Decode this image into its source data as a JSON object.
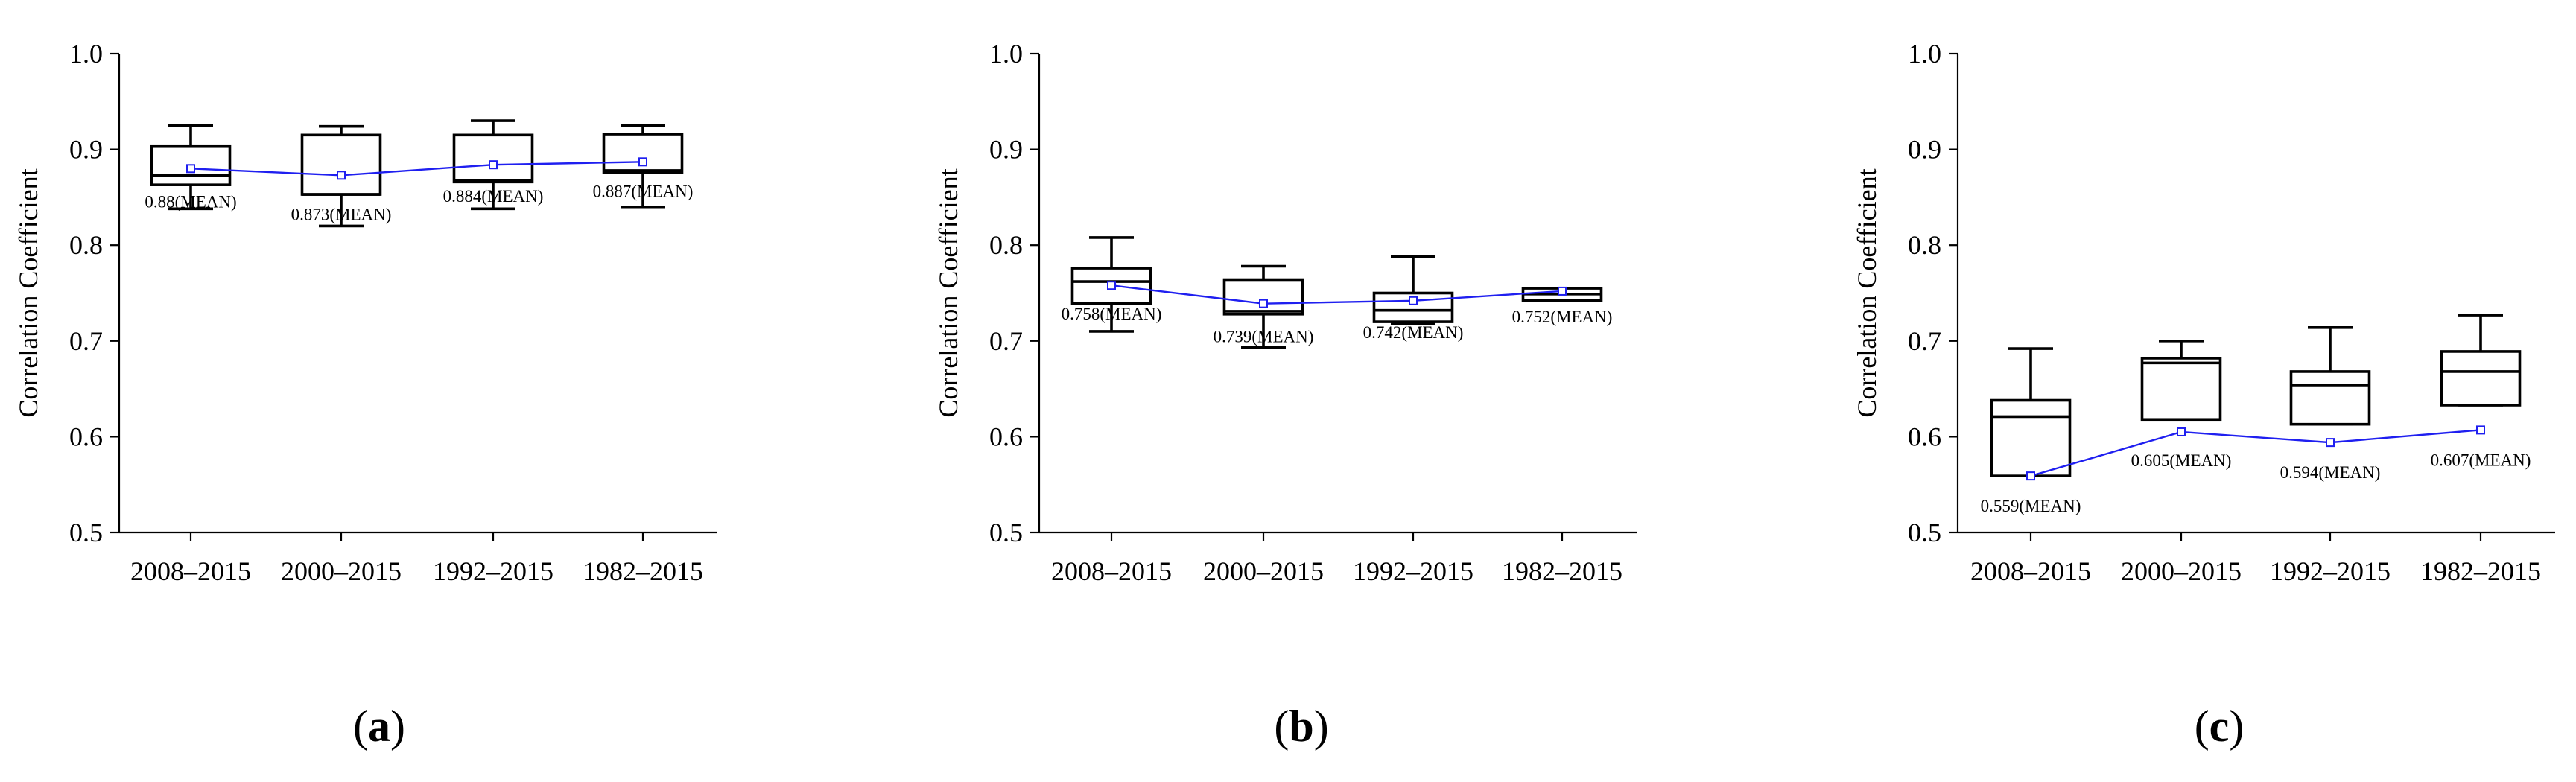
{
  "chart_data": [
    {
      "type": "box",
      "panel_label": "a",
      "ylabel": "Correlation Coefficient",
      "ylim": [
        0.5,
        1.0
      ],
      "yticks": [
        "0.5",
        "0.6",
        "0.7",
        "0.8",
        "0.9",
        "1.0"
      ],
      "categories": [
        "2008–2015",
        "2000–2015",
        "1992–2015",
        "1982–2015"
      ],
      "boxes": [
        {
          "whisker_low": 0.838,
          "q1": 0.863,
          "median": 0.873,
          "q3": 0.903,
          "whisker_high": 0.925,
          "mean": 0.88,
          "mean_label": "0.88(MEAN)"
        },
        {
          "whisker_low": 0.82,
          "q1": 0.853,
          "median": 0.853,
          "q3": 0.915,
          "whisker_high": 0.924,
          "mean": 0.873,
          "mean_label": "0.873(MEAN)"
        },
        {
          "whisker_low": 0.838,
          "q1": 0.866,
          "median": 0.868,
          "q3": 0.915,
          "whisker_high": 0.93,
          "mean": 0.884,
          "mean_label": "0.884(MEAN)"
        },
        {
          "whisker_low": 0.84,
          "q1": 0.876,
          "median": 0.878,
          "q3": 0.916,
          "whisker_high": 0.925,
          "mean": 0.887,
          "mean_label": "0.887(MEAN)"
        }
      ]
    },
    {
      "type": "box",
      "panel_label": "b",
      "ylabel": "Correlation Coefficient",
      "ylim": [
        0.5,
        1.0
      ],
      "yticks": [
        "0.5",
        "0.6",
        "0.7",
        "0.8",
        "0.9",
        "1.0"
      ],
      "categories": [
        "2008–2015",
        "2000–2015",
        "1992–2015",
        "1982–2015"
      ],
      "boxes": [
        {
          "whisker_low": 0.71,
          "q1": 0.739,
          "median": 0.762,
          "q3": 0.776,
          "whisker_high": 0.808,
          "mean": 0.758,
          "mean_label": "0.758(MEAN)"
        },
        {
          "whisker_low": 0.693,
          "q1": 0.728,
          "median": 0.731,
          "q3": 0.764,
          "whisker_high": 0.778,
          "mean": 0.739,
          "mean_label": "0.739(MEAN)"
        },
        {
          "whisker_low": 0.718,
          "q1": 0.72,
          "median": 0.732,
          "q3": 0.75,
          "whisker_high": 0.788,
          "mean": 0.742,
          "mean_label": "0.742(MEAN)"
        },
        {
          "whisker_low": 0.742,
          "q1": 0.742,
          "median": 0.749,
          "q3": 0.755,
          "whisker_high": 0.755,
          "mean": 0.752,
          "mean_label": "0.752(MEAN)"
        }
      ]
    },
    {
      "type": "box",
      "panel_label": "c",
      "ylabel": "Correlation Coefficient",
      "ylim": [
        0.5,
        1.0
      ],
      "yticks": [
        "0.5",
        "0.6",
        "0.7",
        "0.8",
        "0.9",
        "1.0"
      ],
      "categories": [
        "2008–2015",
        "2000–2015",
        "1992–2015",
        "1982–2015"
      ],
      "boxes": [
        {
          "whisker_low": 0.559,
          "q1": 0.559,
          "median": 0.621,
          "q3": 0.638,
          "whisker_high": 0.692,
          "mean": 0.559,
          "mean_label": "0.559(MEAN)"
        },
        {
          "whisker_low": 0.618,
          "q1": 0.618,
          "median": 0.677,
          "q3": 0.682,
          "whisker_high": 0.7,
          "mean": 0.605,
          "mean_label": "0.605(MEAN)"
        },
        {
          "whisker_low": 0.613,
          "q1": 0.613,
          "median": 0.654,
          "q3": 0.668,
          "whisker_high": 0.714,
          "mean": 0.594,
          "mean_label": "0.594(MEAN)"
        },
        {
          "whisker_low": 0.633,
          "q1": 0.633,
          "median": 0.668,
          "q3": 0.689,
          "whisker_high": 0.727,
          "mean": 0.607,
          "mean_label": "0.607(MEAN)"
        }
      ]
    }
  ],
  "colors": {
    "mean_line": "#1f1ff0",
    "axis": "#000000"
  }
}
